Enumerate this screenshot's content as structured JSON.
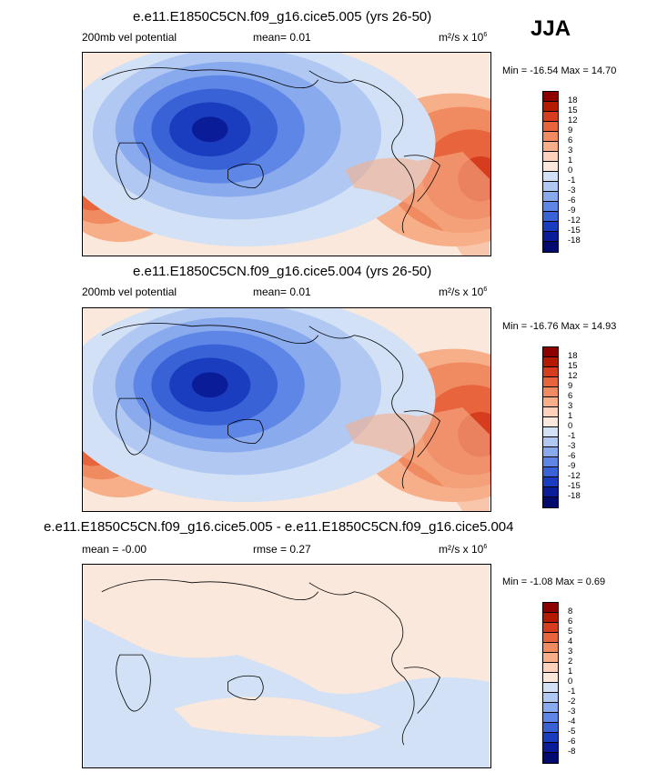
{
  "season": "JJA",
  "panels": [
    {
      "title": "e.e11.E1850C5CN.f09_g16.cice5.005 (yrs 26-50)",
      "left_label": "200mb vel potential",
      "center_label": "mean=  0.01",
      "units": "m²/s x 10",
      "units_exp": "6",
      "minmax": "Min = -16.54 Max =  14.70",
      "levels": [
        "18",
        "15",
        "12",
        "9",
        "6",
        "3",
        "1",
        "0",
        "-1",
        "-3",
        "-6",
        "-9",
        "-12",
        "-15",
        "-18"
      ]
    },
    {
      "title": "e.e11.E1850C5CN.f09_g16.cice5.004 (yrs 26-50)",
      "left_label": "200mb vel potential",
      "center_label": "mean=  0.01",
      "units": "m²/s x 10",
      "units_exp": "6",
      "minmax": "Min = -16.76 Max =  14.93",
      "levels": [
        "18",
        "15",
        "12",
        "9",
        "6",
        "3",
        "1",
        "0",
        "-1",
        "-3",
        "-6",
        "-9",
        "-12",
        "-15",
        "-18"
      ]
    },
    {
      "title": "e.e11.E1850C5CN.f09_g16.cice5.005 - e.e11.E1850C5CN.f09_g16.cice5.004",
      "left_label": "mean = -0.00",
      "center_label": "rmse =   0.27",
      "units": "m²/s x 10",
      "units_exp": "6",
      "minmax": "Min = -1.08 Max =  0.69",
      "levels": [
        "8",
        "6",
        "5",
        "4",
        "3",
        "2",
        "1",
        "0",
        "-1",
        "-2",
        "-3",
        "-4",
        "-5",
        "-6",
        "-8"
      ]
    }
  ],
  "colorbar_colors": [
    "#8c0000",
    "#b31a00",
    "#d63c1e",
    "#e8643c",
    "#f08a60",
    "#f7af8a",
    "#fcd2bd",
    "#fbe8dc",
    "#d2e1f5",
    "#b0c8f2",
    "#8aaaee",
    "#5e86e6",
    "#3862d6",
    "#1a3cbe",
    "#0b1c99",
    "#020a6e"
  ],
  "icons": [
    "colorbar"
  ]
}
